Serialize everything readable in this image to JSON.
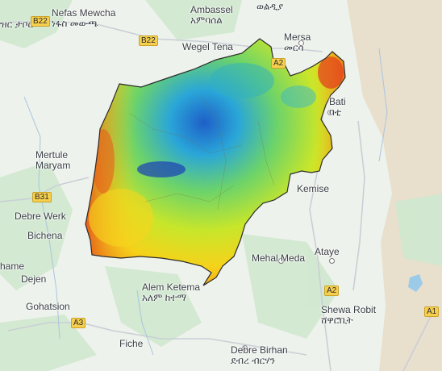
{
  "places": [
    {
      "id": "nefas-mewcha",
      "name": "Nefas Mewcha",
      "name_local": "ነፋስ መውጫ"
    },
    {
      "id": "ambassel",
      "name": "Ambassel",
      "name_local": "አምባሰል"
    },
    {
      "id": "woldiya",
      "name": "",
      "name_local": "ወልዲያ"
    },
    {
      "id": "wegel-tena",
      "name": "Wegel Tena",
      "name_local": ""
    },
    {
      "id": "mersa",
      "name": "Mersa",
      "name_local": "መርሳ"
    },
    {
      "id": "bati",
      "name": "Bati",
      "name_local": "ባቲ"
    },
    {
      "id": "mertule-maryam",
      "name": "Mertule",
      "name_local": "Maryam"
    },
    {
      "id": "debre-werk",
      "name": "Debre Werk",
      "name_local": ""
    },
    {
      "id": "bichena",
      "name": "Bichena",
      "name_local": ""
    },
    {
      "id": "kemise",
      "name": "Kemise",
      "name_local": ""
    },
    {
      "id": "mehal-meda",
      "name": "Mehal Meda",
      "name_local": ""
    },
    {
      "id": "ataye",
      "name": "Ataye",
      "name_local": ""
    },
    {
      "id": "dejen",
      "name": "Dejen",
      "name_local": ""
    },
    {
      "id": "gohatsion",
      "name": "Gohatsion",
      "name_local": ""
    },
    {
      "id": "alem-ketema",
      "name": "Alem Ketema",
      "name_local": "አለም ከተማ"
    },
    {
      "id": "shewa-robit",
      "name": "Shewa Robit",
      "name_local": "ሸዋሮቢት"
    },
    {
      "id": "fiche",
      "name": "Fiche",
      "name_local": ""
    },
    {
      "id": "debre-birhan",
      "name": "Debre Birhan",
      "name_local": "ደብረ ብርሃን"
    },
    {
      "id": "left-top-fragment",
      "name": "ዝር ታቦር",
      "name_local": ""
    },
    {
      "id": "left-name-fragment",
      "name": "hame",
      "name_local": ""
    }
  ],
  "roads": [
    "B22",
    "B22",
    "A2",
    "B31",
    "A2",
    "A3",
    "A1"
  ],
  "colors": {
    "overlay_low": "#d93a1e",
    "overlay_mid": "#f7e51c",
    "overlay_green": "#7ccf3c",
    "overlay_high": "#1e9ad6",
    "overlay_peak": "#2138b8",
    "road_shield": "#f6d04d",
    "basemap_land": "#eef2ec",
    "basemap_green": "#cfe8cf",
    "desert": "#e9dfcd"
  }
}
